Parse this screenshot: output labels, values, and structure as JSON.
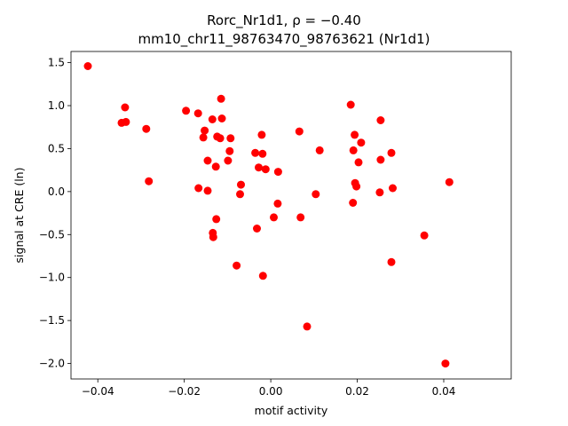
{
  "chart_data": {
    "type": "scatter",
    "title_line1": "Rorc_Nr1d1, ρ = −0.40",
    "title_line2": "mm10_chr11_98763470_98763621 (Nr1d1)",
    "xlabel": "motif activity",
    "ylabel": "signal at CRE (ln)",
    "xlim": [
      -0.0462,
      0.0556
    ],
    "ylim": [
      -2.18,
      1.63
    ],
    "xticks": [
      -0.04,
      -0.02,
      0.0,
      0.02,
      0.04
    ],
    "xtick_labels": [
      "−0.04",
      "−0.02",
      "0.00",
      "0.02",
      "0.04"
    ],
    "yticks": [
      1.5,
      1.0,
      0.5,
      0.0,
      -0.5,
      -1.0,
      -1.5,
      -2.0
    ],
    "ytick_labels": [
      "1.5",
      "1.0",
      "0.5",
      "0.0",
      "−0.5",
      "−1.0",
      "−1.5",
      "−2.0"
    ],
    "grid": false,
    "marker_color": "#ff0000",
    "points": [
      {
        "x": -0.0423,
        "y": 1.46
      },
      {
        "x": -0.0345,
        "y": 0.8
      },
      {
        "x": -0.0337,
        "y": 0.98
      },
      {
        "x": -0.0335,
        "y": 0.81
      },
      {
        "x": -0.0288,
        "y": 0.73
      },
      {
        "x": -0.0282,
        "y": 0.12
      },
      {
        "x": -0.0196,
        "y": 0.94
      },
      {
        "x": -0.0168,
        "y": 0.91
      },
      {
        "x": -0.0167,
        "y": 0.04
      },
      {
        "x": -0.0156,
        "y": 0.63
      },
      {
        "x": -0.0153,
        "y": 0.71
      },
      {
        "x": -0.0146,
        "y": 0.36
      },
      {
        "x": -0.0146,
        "y": 0.01
      },
      {
        "x": -0.0135,
        "y": 0.84
      },
      {
        "x": -0.0134,
        "y": -0.48
      },
      {
        "x": -0.0133,
        "y": -0.53
      },
      {
        "x": -0.0127,
        "y": 0.29
      },
      {
        "x": -0.0126,
        "y": -0.32
      },
      {
        "x": -0.0124,
        "y": 0.64
      },
      {
        "x": -0.0117,
        "y": 0.62
      },
      {
        "x": -0.0115,
        "y": 1.08
      },
      {
        "x": -0.0113,
        "y": 0.85
      },
      {
        "x": -0.0099,
        "y": 0.36
      },
      {
        "x": -0.0095,
        "y": 0.47
      },
      {
        "x": -0.0093,
        "y": 0.62
      },
      {
        "x": -0.0079,
        "y": -0.86
      },
      {
        "x": -0.0071,
        "y": -0.03
      },
      {
        "x": -0.0069,
        "y": 0.08
      },
      {
        "x": -0.0036,
        "y": 0.45
      },
      {
        "x": -0.0032,
        "y": -0.43
      },
      {
        "x": -0.0028,
        "y": 0.28
      },
      {
        "x": -0.0021,
        "y": 0.66
      },
      {
        "x": -0.0019,
        "y": 0.44
      },
      {
        "x": -0.0018,
        "y": -0.98
      },
      {
        "x": -0.0012,
        "y": 0.26
      },
      {
        "x": 0.0007,
        "y": -0.3
      },
      {
        "x": 0.0016,
        "y": -0.14
      },
      {
        "x": 0.0017,
        "y": 0.23
      },
      {
        "x": 0.0066,
        "y": 0.7
      },
      {
        "x": 0.0069,
        "y": -0.3
      },
      {
        "x": 0.0084,
        "y": -1.57
      },
      {
        "x": 0.0104,
        "y": -0.03
      },
      {
        "x": 0.0113,
        "y": 0.48
      },
      {
        "x": 0.0185,
        "y": 1.01
      },
      {
        "x": 0.019,
        "y": -0.13
      },
      {
        "x": 0.0191,
        "y": 0.48
      },
      {
        "x": 0.0194,
        "y": 0.66
      },
      {
        "x": 0.0195,
        "y": 0.1
      },
      {
        "x": 0.0198,
        "y": 0.06
      },
      {
        "x": 0.0203,
        "y": 0.34
      },
      {
        "x": 0.0209,
        "y": 0.57
      },
      {
        "x": 0.0252,
        "y": -0.01
      },
      {
        "x": 0.0254,
        "y": 0.83
      },
      {
        "x": 0.0254,
        "y": 0.37
      },
      {
        "x": 0.0279,
        "y": -0.82
      },
      {
        "x": 0.0279,
        "y": 0.45
      },
      {
        "x": 0.0282,
        "y": 0.04
      },
      {
        "x": 0.0355,
        "y": -0.51
      },
      {
        "x": 0.0404,
        "y": -2.0
      },
      {
        "x": 0.0413,
        "y": 0.11
      }
    ]
  }
}
